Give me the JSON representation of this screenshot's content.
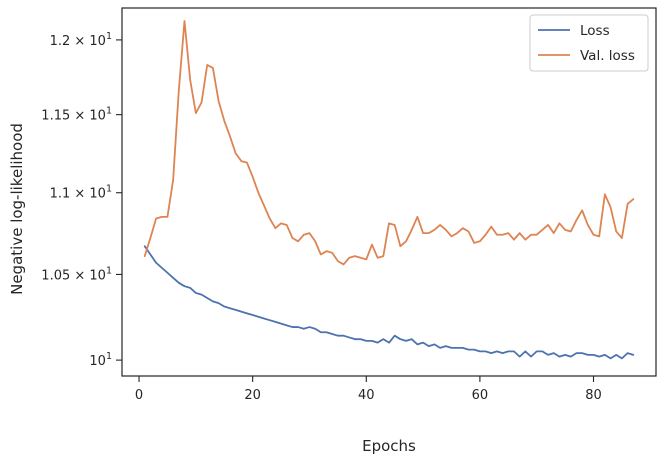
{
  "chart_data": {
    "type": "line",
    "xlabel": "Epochs",
    "ylabel": "Negative log-likelihood",
    "xlim": [
      -3,
      91
    ],
    "ylim": [
      9.91,
      12.22
    ],
    "y_scale": "log",
    "x_ticks": [
      {
        "value": 0,
        "label": "0"
      },
      {
        "value": 20,
        "label": "20"
      },
      {
        "value": 40,
        "label": "40"
      },
      {
        "value": 60,
        "label": "60"
      },
      {
        "value": 80,
        "label": "80"
      }
    ],
    "y_ticks": [
      {
        "value": 10.0,
        "mantissa": "10",
        "exponent": "1",
        "is_base": true
      },
      {
        "value": 10.5,
        "mantissa": "1.05",
        "exponent": "1",
        "is_base": false
      },
      {
        "value": 11.0,
        "mantissa": "1.1",
        "exponent": "1",
        "is_base": false
      },
      {
        "value": 11.5,
        "mantissa": "1.15",
        "exponent": "1",
        "is_base": false
      },
      {
        "value": 12.0,
        "mantissa": "1.2",
        "exponent": "1",
        "is_base": false
      }
    ],
    "grid": false,
    "legend_position": "top-right",
    "series": [
      {
        "name": "Loss",
        "color": "#4c72b0",
        "x": [
          1,
          2,
          3,
          4,
          5,
          6,
          7,
          8,
          9,
          10,
          11,
          12,
          13,
          14,
          15,
          16,
          17,
          18,
          19,
          20,
          21,
          22,
          23,
          24,
          25,
          26,
          27,
          28,
          29,
          30,
          31,
          32,
          33,
          34,
          35,
          36,
          37,
          38,
          39,
          40,
          41,
          42,
          43,
          44,
          45,
          46,
          47,
          48,
          49,
          50,
          51,
          52,
          53,
          54,
          55,
          56,
          57,
          58,
          59,
          60,
          61,
          62,
          63,
          64,
          65,
          66,
          67,
          68,
          69,
          70,
          71,
          72,
          73,
          74,
          75,
          76,
          77,
          78,
          79,
          80,
          81,
          82,
          83,
          84,
          85,
          86,
          87
        ],
        "y": [
          10.67,
          10.62,
          10.57,
          10.54,
          10.51,
          10.48,
          10.45,
          10.43,
          10.42,
          10.39,
          10.38,
          10.36,
          10.34,
          10.33,
          10.31,
          10.3,
          10.29,
          10.28,
          10.27,
          10.26,
          10.25,
          10.24,
          10.23,
          10.22,
          10.21,
          10.2,
          10.19,
          10.19,
          10.18,
          10.19,
          10.18,
          10.16,
          10.16,
          10.15,
          10.14,
          10.14,
          10.13,
          10.12,
          10.12,
          10.11,
          10.11,
          10.1,
          10.12,
          10.1,
          10.14,
          10.12,
          10.11,
          10.12,
          10.09,
          10.1,
          10.08,
          10.09,
          10.07,
          10.08,
          10.07,
          10.07,
          10.07,
          10.06,
          10.06,
          10.05,
          10.05,
          10.04,
          10.05,
          10.04,
          10.05,
          10.05,
          10.02,
          10.05,
          10.02,
          10.05,
          10.05,
          10.03,
          10.04,
          10.02,
          10.03,
          10.02,
          10.04,
          10.04,
          10.03,
          10.03,
          10.02,
          10.03,
          10.01,
          10.03,
          10.01,
          10.04,
          10.03
        ]
      },
      {
        "name": "Val. loss",
        "color": "#dd8452",
        "x": [
          1,
          2,
          3,
          4,
          5,
          6,
          7,
          8,
          9,
          10,
          11,
          12,
          13,
          14,
          15,
          16,
          17,
          18,
          19,
          20,
          21,
          22,
          23,
          24,
          25,
          26,
          27,
          28,
          29,
          30,
          31,
          32,
          33,
          34,
          35,
          36,
          37,
          38,
          39,
          40,
          41,
          42,
          43,
          44,
          45,
          46,
          47,
          48,
          49,
          50,
          51,
          52,
          53,
          54,
          55,
          56,
          57,
          58,
          59,
          60,
          61,
          62,
          63,
          64,
          65,
          66,
          67,
          68,
          69,
          70,
          71,
          72,
          73,
          74,
          75,
          76,
          77,
          78,
          79,
          80,
          81,
          82,
          83,
          84,
          85,
          86,
          87
        ],
        "y": [
          10.61,
          10.72,
          10.84,
          10.85,
          10.85,
          11.08,
          11.66,
          12.13,
          11.73,
          11.51,
          11.58,
          11.83,
          11.81,
          11.59,
          11.46,
          11.36,
          11.25,
          11.2,
          11.19,
          11.1,
          11.0,
          10.92,
          10.84,
          10.78,
          10.81,
          10.8,
          10.72,
          10.7,
          10.74,
          10.75,
          10.7,
          10.62,
          10.64,
          10.63,
          10.58,
          10.56,
          10.6,
          10.61,
          10.6,
          10.59,
          10.68,
          10.6,
          10.61,
          10.81,
          10.8,
          10.67,
          10.7,
          10.77,
          10.85,
          10.75,
          10.75,
          10.77,
          10.8,
          10.77,
          10.73,
          10.75,
          10.78,
          10.76,
          10.69,
          10.7,
          10.74,
          10.79,
          10.74,
          10.74,
          10.75,
          10.71,
          10.75,
          10.71,
          10.74,
          10.74,
          10.77,
          10.8,
          10.75,
          10.81,
          10.77,
          10.76,
          10.83,
          10.89,
          10.8,
          10.74,
          10.73,
          10.99,
          10.91,
          10.76,
          10.72,
          10.93,
          10.96
        ]
      }
    ]
  }
}
